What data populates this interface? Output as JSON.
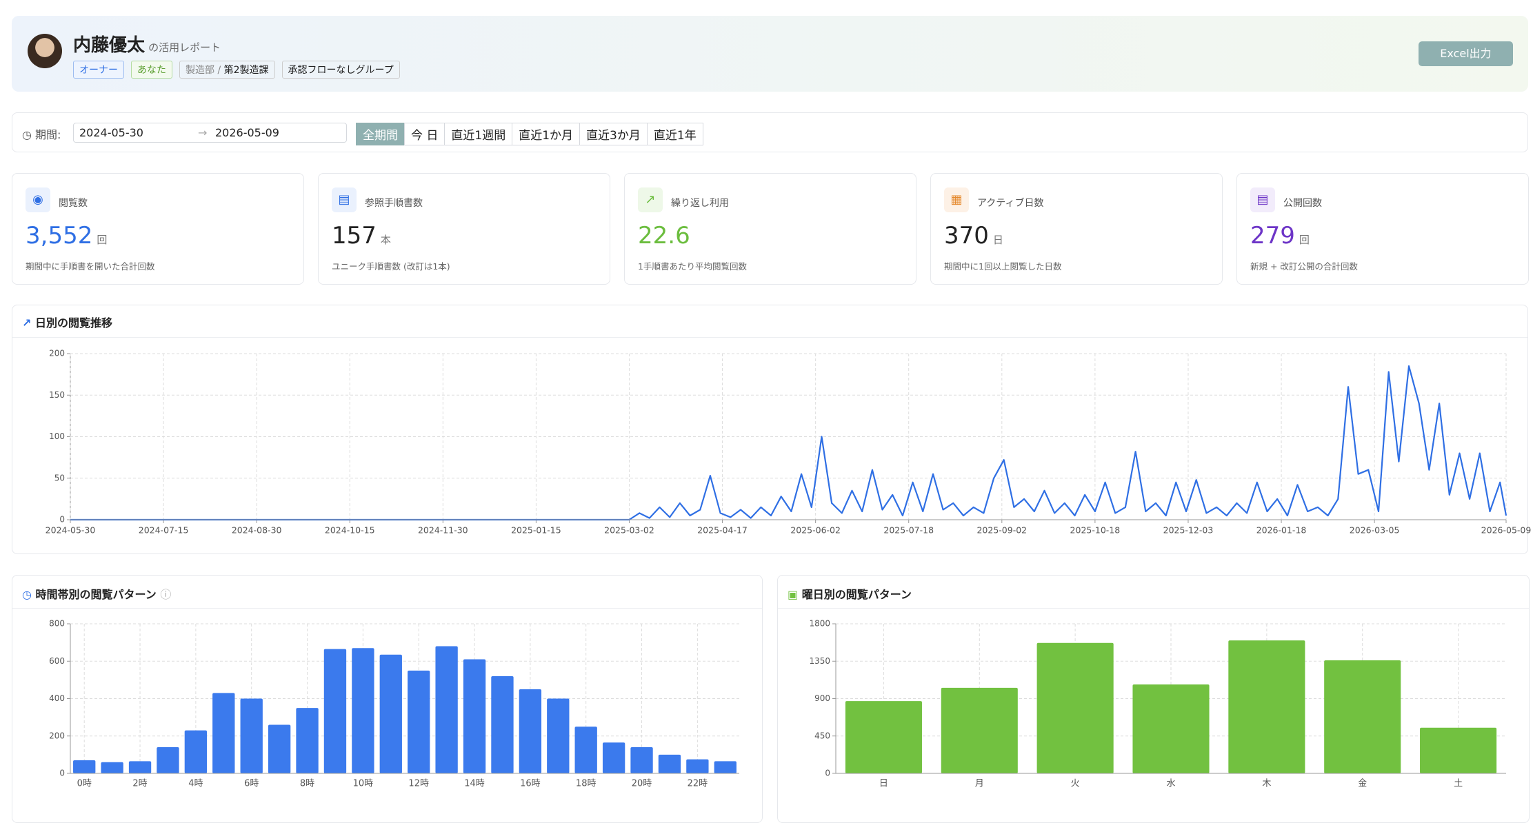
{
  "header": {
    "name": "内藤優太",
    "subtitle": "の活用レポート",
    "tags": [
      "オーナー",
      "あなた"
    ],
    "dept_label": "製造部 /",
    "dept": "第2製造課",
    "group": "承認フローなしグループ",
    "export_button": "Excel出力"
  },
  "filter": {
    "label": "期間:",
    "start": "2024-05-30",
    "end": "2026-05-09",
    "presets": [
      "全期間",
      "今 日",
      "直近1週間",
      "直近1か月",
      "直近3か月",
      "直近1年"
    ]
  },
  "kpis": [
    {
      "label": "閲覧数",
      "value": "3,552",
      "unit": "回",
      "note": "期間中に手順書を開いた合計回数",
      "color": "#2f6fe4"
    },
    {
      "label": "参照手順書数",
      "value": "157",
      "unit": "本",
      "note": "ユニーク手順書数 (改訂は1本)",
      "color": "#222222"
    },
    {
      "label": "繰り返し利用",
      "value": "22.6",
      "unit": "",
      "note": "1手順書あたり平均閲覧回数",
      "color": "#6bbd3e"
    },
    {
      "label": "アクティブ日数",
      "value": "370",
      "unit": "日",
      "note": "期間中に1回以上閲覧した日数",
      "color": "#222222"
    },
    {
      "label": "公開回数",
      "value": "279",
      "unit": "回",
      "note": "新規 + 改訂公開の合計回数",
      "color": "#6d35c7"
    }
  ],
  "chart_data": [
    {
      "type": "line",
      "title": "日別の閲覧推移",
      "color": "#2f6fe4",
      "grid": true,
      "xlim": [
        "2024-05-30",
        "2026-05-09"
      ],
      "xticks": [
        "2024-05-30",
        "2024-07-15",
        "2024-08-30",
        "2024-10-15",
        "2024-11-30",
        "2025-01-15",
        "2025-03-02",
        "2025-04-17",
        "2025-06-02",
        "2025-07-18",
        "2025-09-02",
        "2025-10-18",
        "2025-12-03",
        "2026-01-18",
        "2026-03-05",
        "2026-05-09"
      ],
      "ylim": [
        0,
        200
      ],
      "yticks": [
        0,
        50,
        100,
        150,
        200
      ],
      "x": [
        "2024-05-30",
        "2025-03-02",
        "2025-03-07",
        "2025-03-12",
        "2025-03-17",
        "2025-03-22",
        "2025-03-27",
        "2025-04-01",
        "2025-04-06",
        "2025-04-11",
        "2025-04-16",
        "2025-04-21",
        "2025-04-26",
        "2025-05-01",
        "2025-05-06",
        "2025-05-11",
        "2025-05-16",
        "2025-05-21",
        "2025-05-26",
        "2025-05-31",
        "2025-06-05",
        "2025-06-10",
        "2025-06-15",
        "2025-06-20",
        "2025-06-25",
        "2025-06-30",
        "2025-07-05",
        "2025-07-10",
        "2025-07-15",
        "2025-07-20",
        "2025-07-25",
        "2025-07-30",
        "2025-08-04",
        "2025-08-09",
        "2025-08-14",
        "2025-08-19",
        "2025-08-24",
        "2025-08-29",
        "2025-09-03",
        "2025-09-08",
        "2025-09-13",
        "2025-09-18",
        "2025-09-23",
        "2025-09-28",
        "2025-10-03",
        "2025-10-08",
        "2025-10-13",
        "2025-10-18",
        "2025-10-23",
        "2025-10-28",
        "2025-11-02",
        "2025-11-07",
        "2025-11-12",
        "2025-11-17",
        "2025-11-22",
        "2025-11-27",
        "2025-12-02",
        "2025-12-07",
        "2025-12-12",
        "2025-12-17",
        "2025-12-22",
        "2025-12-27",
        "2026-01-01",
        "2026-01-06",
        "2026-01-11",
        "2026-01-16",
        "2026-01-21",
        "2026-01-26",
        "2026-01-31",
        "2026-02-05",
        "2026-02-10",
        "2026-02-15",
        "2026-02-20",
        "2026-02-25",
        "2026-03-02",
        "2026-03-07",
        "2026-03-12",
        "2026-03-17",
        "2026-03-22",
        "2026-03-27",
        "2026-04-01",
        "2026-04-06",
        "2026-04-11",
        "2026-04-16",
        "2026-04-21",
        "2026-04-26",
        "2026-05-01",
        "2026-05-06",
        "2026-05-09"
      ],
      "values": [
        0,
        0,
        8,
        2,
        15,
        3,
        20,
        5,
        12,
        53,
        8,
        3,
        12,
        2,
        15,
        5,
        28,
        10,
        55,
        15,
        100,
        20,
        8,
        35,
        10,
        60,
        12,
        30,
        5,
        45,
        10,
        55,
        12,
        20,
        5,
        15,
        8,
        50,
        72,
        15,
        25,
        10,
        35,
        8,
        20,
        5,
        30,
        10,
        45,
        8,
        15,
        82,
        10,
        20,
        5,
        45,
        10,
        48,
        8,
        15,
        5,
        20,
        8,
        45,
        10,
        25,
        5,
        42,
        10,
        15,
        5,
        25,
        160,
        55,
        60,
        10,
        178,
        70,
        185,
        140,
        60,
        140,
        30,
        80,
        25,
        80,
        10,
        45,
        5
      ]
    },
    {
      "type": "bar",
      "title": "時間帯別の閲覧パターン",
      "color": "#3b7aed",
      "grid": true,
      "categories": [
        "0時",
        null,
        "2時",
        null,
        "4時",
        null,
        "6時",
        null,
        "8時",
        null,
        "10時",
        null,
        "12時",
        null,
        "14時",
        null,
        "16時",
        null,
        "18時",
        null,
        "20時",
        null,
        "22時",
        null
      ],
      "values": [
        70,
        60,
        65,
        140,
        230,
        430,
        400,
        260,
        350,
        665,
        670,
        635,
        550,
        680,
        610,
        520,
        450,
        400,
        250,
        165,
        140,
        100,
        75,
        65
      ],
      "ylim": [
        0,
        800
      ],
      "yticks": [
        0,
        200,
        400,
        600,
        800
      ]
    },
    {
      "type": "bar",
      "title": "曜日別の閲覧パターン",
      "color": "#72c140",
      "grid": true,
      "categories": [
        "日",
        "月",
        "火",
        "水",
        "木",
        "金",
        "土"
      ],
      "values": [
        870,
        1030,
        1570,
        1070,
        1600,
        1360,
        550
      ],
      "ylim": [
        0,
        1800
      ],
      "yticks": [
        0,
        450,
        900,
        1350,
        1800
      ]
    }
  ]
}
